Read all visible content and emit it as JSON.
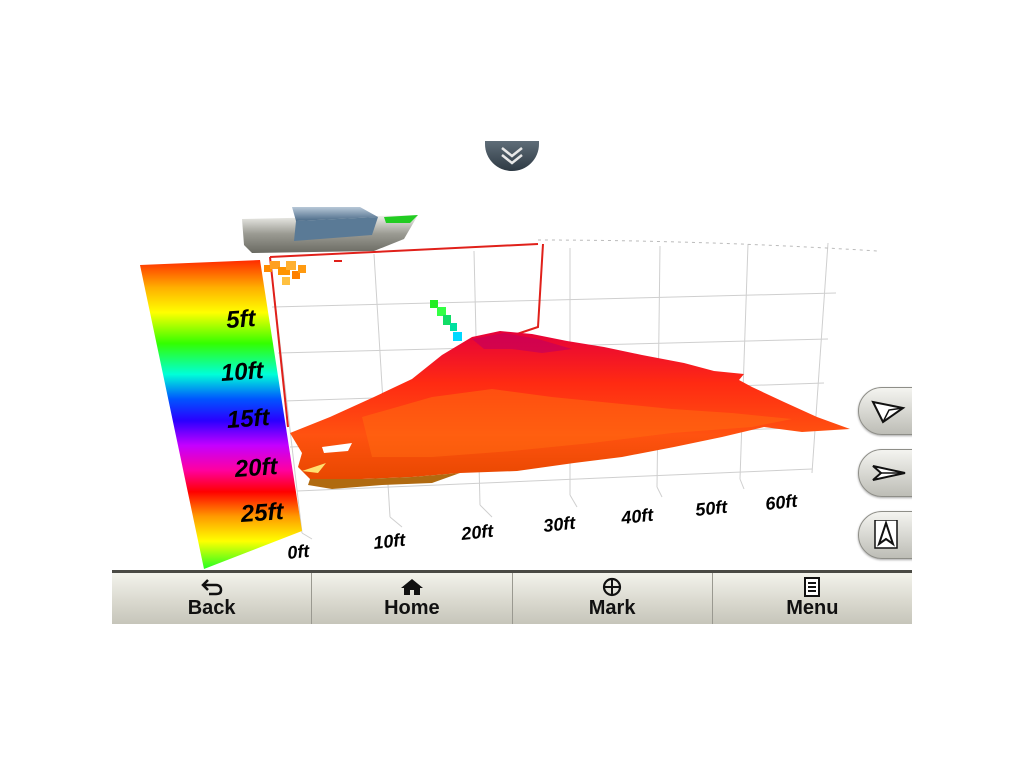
{
  "depth_scale": {
    "labels": [
      "5ft",
      "10ft",
      "15ft",
      "20ft",
      "25ft"
    ]
  },
  "distance_axis": {
    "labels": [
      "0ft",
      "10ft",
      "20ft",
      "30ft",
      "40ft",
      "50ft",
      "60ft"
    ]
  },
  "collapse_button": {
    "icon": "chevron-double-down-icon"
  },
  "nav_buttons": [
    {
      "icon": "perspective-view-icon"
    },
    {
      "icon": "side-view-icon"
    },
    {
      "icon": "north-up-icon"
    }
  ],
  "toolbar": {
    "back_label": "Back",
    "home_label": "Home",
    "mark_label": "Mark",
    "menu_label": "Menu"
  },
  "colors": {
    "toolbar_text": "#111111",
    "sonar_surface": "#ff2a1a",
    "boundary_line": "#e0201a"
  }
}
